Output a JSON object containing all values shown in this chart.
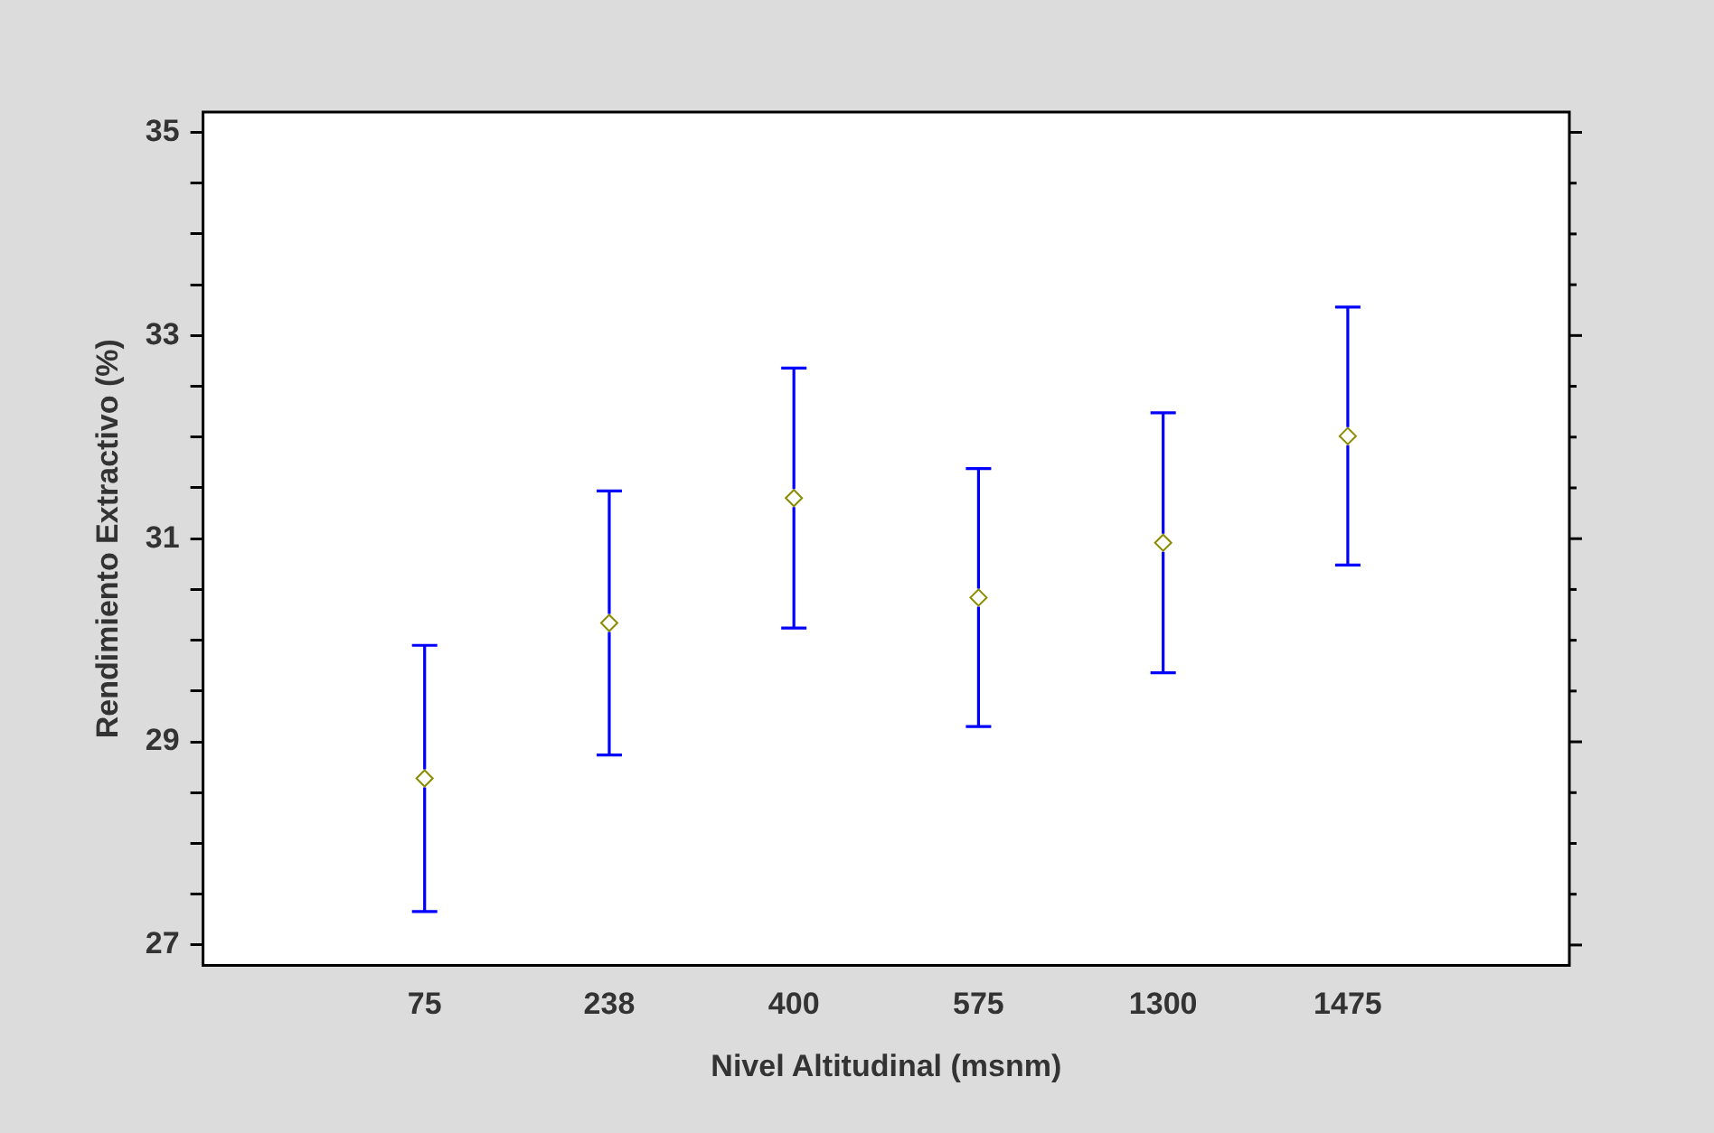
{
  "chart_data": {
    "type": "scatter",
    "xlabel": "Nivel Altitudinal (msnm)",
    "ylabel": "Rendimiento Extractivo (%)",
    "categories": [
      "75",
      "238",
      "400",
      "575",
      "1300",
      "1475"
    ],
    "series": [
      {
        "color": "#8b8b00",
        "values": [
          28.64,
          30.17,
          31.4,
          30.42,
          30.96,
          32.01
        ],
        "errors": [
          1.31,
          1.3,
          1.28,
          1.27,
          1.28,
          1.27
        ]
      }
    ],
    "ylim": [
      26.8,
      35.2
    ],
    "yticks": [
      27,
      {
        "value": 27.5,
        "label": null
      },
      {
        "value": 28,
        "label": null
      },
      {
        "value": 28.5,
        "label": null
      },
      29,
      {
        "value": 29.5,
        "label": null
      },
      {
        "value": 30,
        "label": null
      },
      {
        "value": 30.5,
        "label": null
      },
      31,
      {
        "value": 31.5,
        "label": null
      },
      {
        "value": 32,
        "label": null
      },
      {
        "value": 32.5,
        "label": null
      },
      33,
      {
        "value": 33.5,
        "label": null
      },
      {
        "value": 34,
        "label": null
      },
      {
        "value": 34.5,
        "label": null
      },
      35
    ],
    "marker": "diamond",
    "grid": false,
    "legend": false
  }
}
